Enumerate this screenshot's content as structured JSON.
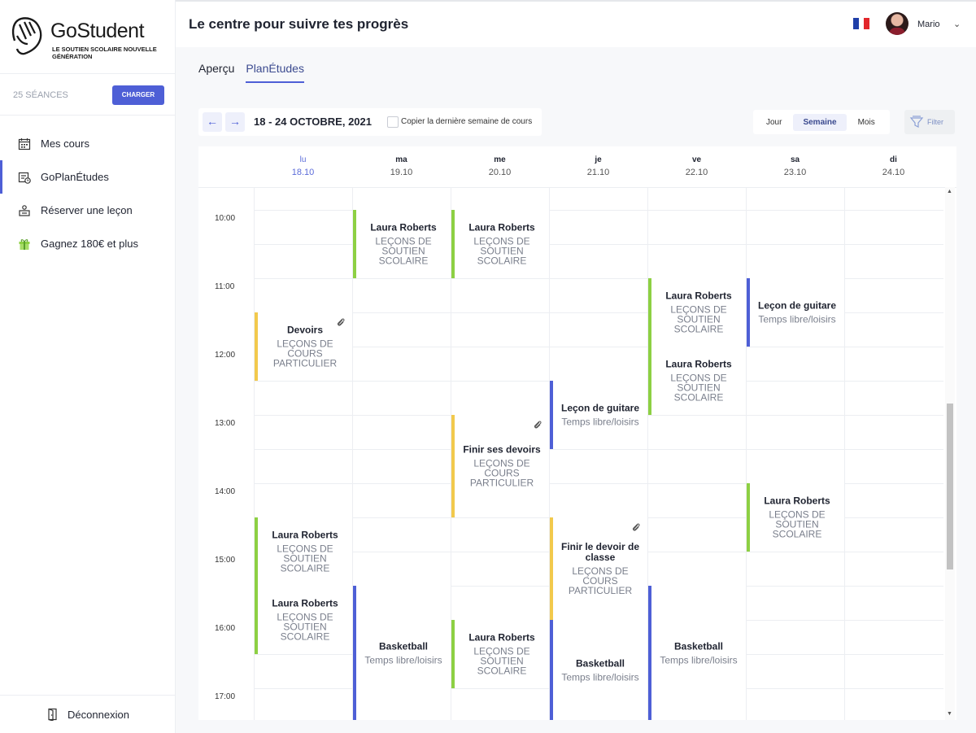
{
  "brand": {
    "name": "GoStudent",
    "tagline": "LE SOUTIEN SCOLAIRE NOUVELLE GÉNÉRATION"
  },
  "credits": {
    "label": "25 SÉANCES",
    "button": "CHARGER"
  },
  "nav": [
    {
      "label": "Mes cours",
      "icon": "calendar-icon"
    },
    {
      "label": "GoPlanÉtudes",
      "icon": "planner-icon"
    },
    {
      "label": "Réserver une leçon",
      "icon": "book-lesson-icon"
    },
    {
      "label": "Gagnez 180€ et plus",
      "icon": "gift-icon"
    }
  ],
  "logout": {
    "label": "Déconnexion"
  },
  "header": {
    "title": "Le centre pour suivre tes progrès",
    "user": "Mario",
    "flag_colors": [
      "#1f3fa8",
      "#ffffff",
      "#e2262b"
    ]
  },
  "tabs": [
    {
      "label": "Aperçu",
      "active": false
    },
    {
      "label": "PlanÉtudes",
      "active": true
    }
  ],
  "toolbar": {
    "prev": "←",
    "next": "→",
    "range": "18 - 24 OCTOBRE, 2021",
    "copy_label": "Copier la dernière semaine de cours",
    "views": [
      "Jour",
      "Semaine",
      "Mois"
    ],
    "active_view": "Semaine",
    "filter": "Filter"
  },
  "days": [
    {
      "name": "lu",
      "date": "18.10",
      "today": true
    },
    {
      "name": "ma",
      "date": "19.10",
      "today": false
    },
    {
      "name": "me",
      "date": "20.10",
      "today": false
    },
    {
      "name": "je",
      "date": "21.10",
      "today": false
    },
    {
      "name": "ve",
      "date": "22.10",
      "today": false
    },
    {
      "name": "sa",
      "date": "23.10",
      "today": false
    },
    {
      "name": "di",
      "date": "24.10",
      "today": false
    }
  ],
  "hours": [
    "10:00",
    "11:00",
    "12:00",
    "13:00",
    "14:00",
    "15:00",
    "16:00",
    "17:00"
  ],
  "events": [
    {
      "day": 1,
      "start": "10:00",
      "end": "11:00",
      "title": "Laura Roberts",
      "subtitle": "LEÇONS DE SOUTIEN SCOLAIRE",
      "color": "green",
      "clip": false
    },
    {
      "day": 2,
      "start": "10:00",
      "end": "11:00",
      "title": "Laura Roberts",
      "subtitle": "LEÇONS DE SOUTIEN SCOLAIRE",
      "color": "green",
      "clip": false
    },
    {
      "day": 4,
      "start": "11:00",
      "end": "12:00",
      "title": "Laura Roberts",
      "subtitle": "LEÇONS DE SOUTIEN SCOLAIRE",
      "color": "green",
      "clip": false
    },
    {
      "day": 5,
      "start": "11:00",
      "end": "12:00",
      "title": "Leçon de guitare",
      "subtitle": "Temps libre/loisirs",
      "color": "blue",
      "clip": false
    },
    {
      "day": 0,
      "start": "11:30",
      "end": "12:30",
      "title": "Devoirs",
      "subtitle": "LEÇONS DE COURS PARTICULIER",
      "color": "yellow",
      "clip": true
    },
    {
      "day": 4,
      "start": "12:00",
      "end": "13:00",
      "title": "Laura Roberts",
      "subtitle": "LEÇONS DE SOUTIEN SCOLAIRE",
      "color": "green",
      "clip": false
    },
    {
      "day": 3,
      "start": "12:30",
      "end": "13:30",
      "title": "Leçon de guitare",
      "subtitle": "Temps libre/loisirs",
      "color": "blue",
      "clip": false
    },
    {
      "day": 2,
      "start": "13:00",
      "end": "14:30",
      "title": "Finir ses devoirs",
      "subtitle": "LEÇONS DE COURS PARTICULIER",
      "color": "yellow",
      "clip": true
    },
    {
      "day": 5,
      "start": "14:00",
      "end": "15:00",
      "title": "Laura Roberts",
      "subtitle": "LEÇONS DE SOUTIEN SCOLAIRE",
      "color": "green",
      "clip": false
    },
    {
      "day": 0,
      "start": "14:30",
      "end": "15:30",
      "title": "Laura Roberts",
      "subtitle": "LEÇONS DE SOUTIEN SCOLAIRE",
      "color": "green",
      "clip": false
    },
    {
      "day": 3,
      "start": "14:30",
      "end": "16:00",
      "title": "Finir le devoir de classe",
      "subtitle": "LEÇONS DE COURS PARTICULIER",
      "color": "yellow",
      "clip": true
    },
    {
      "day": 0,
      "start": "15:30",
      "end": "16:30",
      "title": "Laura Roberts",
      "subtitle": "LEÇONS DE SOUTIEN SCOLAIRE",
      "color": "green",
      "clip": false
    },
    {
      "day": 1,
      "start": "15:30",
      "end": "17:30",
      "title": "Basketball",
      "subtitle": "Temps libre/loisirs",
      "color": "blue",
      "clip": false
    },
    {
      "day": 2,
      "start": "16:00",
      "end": "17:00",
      "title": "Laura Roberts",
      "subtitle": "LEÇONS DE SOUTIEN SCOLAIRE",
      "color": "green",
      "clip": false
    },
    {
      "day": 3,
      "start": "16:00",
      "end": "17:30",
      "title": "Basketball",
      "subtitle": "Temps libre/loisirs",
      "color": "blue",
      "clip": false
    },
    {
      "day": 4,
      "start": "15:30",
      "end": "17:30",
      "title": "Basketball",
      "subtitle": "Temps libre/loisirs",
      "color": "blue",
      "clip": false
    }
  ]
}
